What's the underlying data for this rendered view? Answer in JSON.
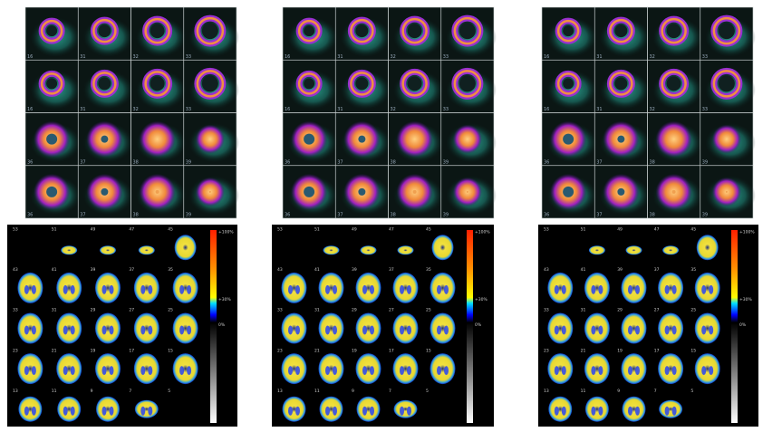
{
  "panels": [
    {
      "cardiac_labels": [
        [
          "16",
          "31",
          "32",
          "33"
        ],
        [
          "16",
          "31",
          "32",
          "33"
        ],
        [
          "36",
          "37",
          "38",
          "39"
        ],
        [
          "36",
          "37",
          "38",
          "39"
        ]
      ]
    },
    {
      "cardiac_labels": [
        [
          "16",
          "31",
          "32",
          "33"
        ],
        [
          "16",
          "31",
          "32",
          "33"
        ],
        [
          "36",
          "37",
          "38",
          "39"
        ],
        [
          "36",
          "37",
          "38",
          "39"
        ]
      ]
    },
    {
      "cardiac_labels": [
        [
          "16",
          "31",
          "32",
          "33"
        ],
        [
          "16",
          "31",
          "32",
          "33"
        ],
        [
          "36",
          "37",
          "38",
          "39"
        ],
        [
          "36",
          "37",
          "38",
          "39"
        ]
      ]
    }
  ],
  "brain_labels": [
    [
      "53",
      "51",
      "49",
      "47",
      "45"
    ],
    [
      "43",
      "41",
      "39",
      "37",
      "35"
    ],
    [
      "33",
      "31",
      "29",
      "27",
      "25"
    ],
    [
      "23",
      "21",
      "19",
      "17",
      "15"
    ],
    [
      "13",
      "11",
      "9",
      "7",
      "5"
    ]
  ],
  "colorbar": {
    "top": "+100%",
    "mid": "+30%",
    "bottom": "0%"
  }
}
